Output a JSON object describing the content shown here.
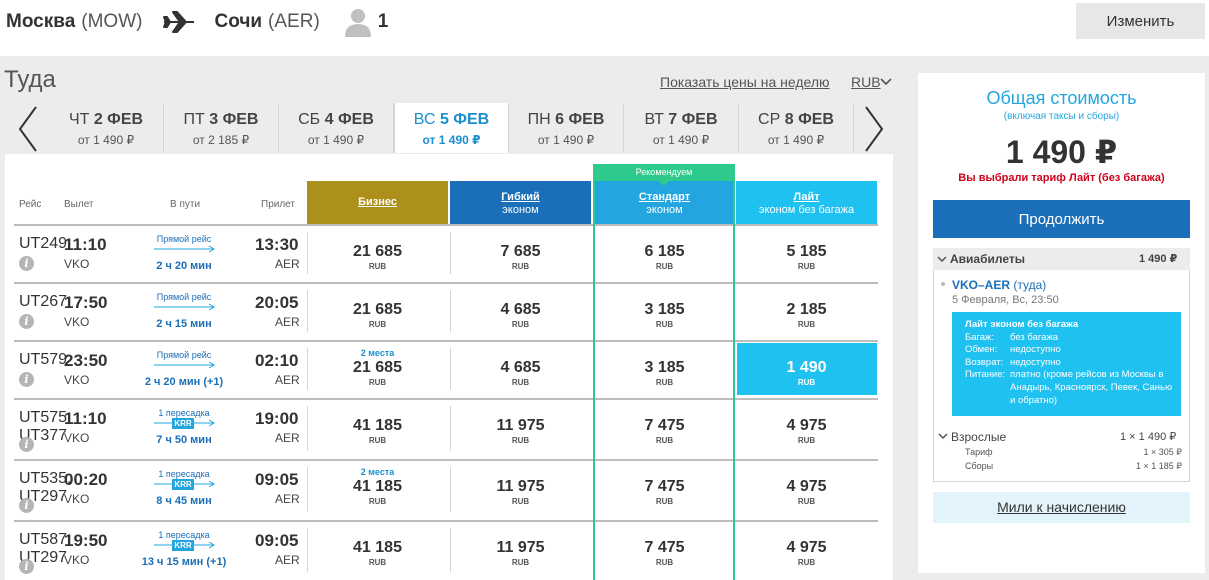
{
  "header": {
    "from_city": "Москва",
    "from_code": "(MOW)",
    "to_city": "Сочи",
    "to_code": "(AER)",
    "passengers": "1",
    "change_label": "Изменить",
    "icons": [
      "plane-icon",
      "passenger-icon"
    ]
  },
  "search": {
    "direction_title": "Туда",
    "week_prices_link": "Показать цены на неделю",
    "currency": "RUB"
  },
  "dates": [
    {
      "dow": "ЧТ",
      "day": "2 ФЕВ",
      "price": "от 1 490 ₽"
    },
    {
      "dow": "ПТ",
      "day": "3 ФЕВ",
      "price": "от 2 185 ₽"
    },
    {
      "dow": "СБ",
      "day": "4 ФЕВ",
      "price": "от 1 490 ₽"
    },
    {
      "dow": "ВС",
      "day": "5 ФЕВ",
      "price": "от 1 490 ₽"
    },
    {
      "dow": "ПН",
      "day": "6 ФЕВ",
      "price": "от 1 490 ₽"
    },
    {
      "dow": "ВТ",
      "day": "7 ФЕВ",
      "price": "от 1 490 ₽"
    },
    {
      "dow": "СР",
      "day": "8 ФЕВ",
      "price": "от 1 490 ₽"
    }
  ],
  "active_date_index": 3,
  "table": {
    "col_flight": "Рейс",
    "col_depart": "Вылет",
    "col_duration": "В пути",
    "col_arrive": "Прилет",
    "recommended": "Рекомендуем",
    "fares": [
      {
        "name": "Бизнес",
        "sub": ""
      },
      {
        "name": "Гибкий",
        "sub": "эконом"
      },
      {
        "name": "Стандарт",
        "sub": "эконом"
      },
      {
        "name": "Лайт",
        "sub": "эконом без багажа"
      }
    ],
    "currency_label": "RUB",
    "rows": [
      {
        "flight_line1": "UT249",
        "flight_line2": "",
        "dep": "11:10",
        "dep_ap": "VKO",
        "stop": "Прямой рейс",
        "hub": "",
        "duration": "2 ч 20 мин",
        "arr": "13:30",
        "arr_ap": "AER",
        "seats": [
          "",
          "",
          "",
          ""
        ],
        "prices": [
          "21 685",
          "7 685",
          "6 185",
          "5 185"
        ]
      },
      {
        "flight_line1": "UT267",
        "flight_line2": "",
        "dep": "17:50",
        "dep_ap": "VKO",
        "stop": "Прямой рейс",
        "hub": "",
        "duration": "2 ч 15 мин",
        "arr": "20:05",
        "arr_ap": "AER",
        "seats": [
          "",
          "",
          "",
          ""
        ],
        "prices": [
          "21 685",
          "4 685",
          "3 185",
          "2 185"
        ]
      },
      {
        "flight_line1": "UT579",
        "flight_line2": "",
        "dep": "23:50",
        "dep_ap": "VKO",
        "stop": "Прямой рейс",
        "hub": "",
        "duration": "2 ч 20 мин (+1)",
        "arr": "02:10",
        "arr_ap": "AER",
        "seats": [
          "2 места",
          "",
          "",
          ""
        ],
        "prices": [
          "21 685",
          "4 685",
          "3 185",
          "1 490"
        ]
      },
      {
        "flight_line1": "UT575,",
        "flight_line2": "UT377",
        "dep": "11:10",
        "dep_ap": "VKO",
        "stop": "1 пересадка",
        "hub": "KRR",
        "duration": "7 ч 50 мин",
        "arr": "19:00",
        "arr_ap": "AER",
        "seats": [
          "",
          "",
          "",
          ""
        ],
        "prices": [
          "41 185",
          "11 975",
          "7 475",
          "4 975"
        ]
      },
      {
        "flight_line1": "UT535,",
        "flight_line2": "UT297",
        "dep": "00:20",
        "dep_ap": "VKO",
        "stop": "1 пересадка",
        "hub": "KRR",
        "duration": "8 ч 45 мин",
        "arr": "09:05",
        "arr_ap": "AER",
        "seats": [
          "2 места",
          "",
          "",
          ""
        ],
        "prices": [
          "41 185",
          "11 975",
          "7 475",
          "4 975"
        ]
      },
      {
        "flight_line1": "UT587,",
        "flight_line2": "UT297",
        "dep": "19:50",
        "dep_ap": "VKO",
        "stop": "1 пересадка",
        "hub": "KRR",
        "duration": "13 ч 15 мин (+1)",
        "arr": "09:05",
        "arr_ap": "AER",
        "seats": [
          "",
          "",
          "",
          ""
        ],
        "prices": [
          "41 185",
          "11 975",
          "7 475",
          "4 975"
        ]
      }
    ],
    "selected": {
      "row": 2,
      "fare": 3
    }
  },
  "summary": {
    "title": "Общая стоимость",
    "subtitle": "(включая таксы и сборы)",
    "total": "1 490 ₽",
    "tariff_note": "Вы выбрали тариф Лайт (без багажа)",
    "continue_label": "Продолжить",
    "tickets_label": "Авиабилеты",
    "tickets_sum": "1 490 ₽",
    "segment_route": "VKO–AER",
    "segment_dir": "(туда)",
    "segment_date": "5 Февраля, Вс, 23:50",
    "tariff_name": "Лайт эконом без багажа",
    "tariff_details": [
      {
        "k": "Багаж:",
        "v": "без багажа"
      },
      {
        "k": "Обмен:",
        "v": "недоступно"
      },
      {
        "k": "Возврат:",
        "v": "недоступно"
      },
      {
        "k": "Питание:",
        "v": "платно (кроме рейсов из Москвы в Анадырь, Красноярск, Певек, Санью и обратно)"
      }
    ],
    "adults_label": "Взрослые",
    "adults_value": "1 × 1 490 ₽",
    "fees": [
      {
        "label": "Тариф",
        "value": "1 × 305 ₽"
      },
      {
        "label": "Сборы",
        "value": "1 × 1 185 ₽"
      }
    ],
    "miles_label": "Мили к начислению"
  },
  "colors": {
    "business": "#ad8f1b",
    "flex": "#1a6fb8",
    "standard": "#23a6e0",
    "lite": "#1ec1f0",
    "recommend": "#2dca8b",
    "alert": "#d0021b"
  }
}
